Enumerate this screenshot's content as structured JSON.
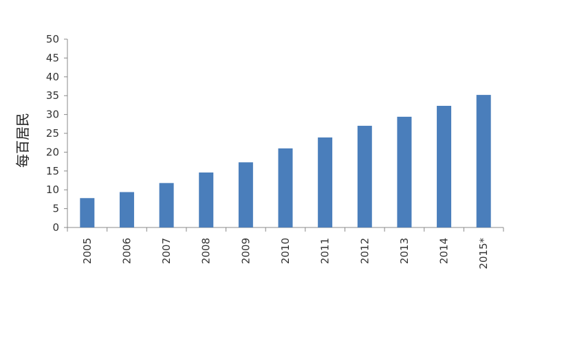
{
  "chart_data": {
    "type": "bar",
    "title": "",
    "xlabel": "",
    "ylabel": "每百居民",
    "categories": [
      "2005",
      "2006",
      "2007",
      "2008",
      "2009",
      "2010",
      "2011",
      "2012",
      "2013",
      "2014",
      "2015*"
    ],
    "values": [
      7.8,
      9.4,
      11.8,
      14.6,
      17.3,
      21.0,
      23.9,
      27.0,
      29.4,
      32.3,
      35.2
    ],
    "ylim": [
      0,
      50
    ],
    "yticks": [
      "0",
      "5",
      "10",
      "15",
      "20",
      "25",
      "30",
      "35",
      "40",
      "45",
      "50"
    ],
    "grid": false,
    "legend": "none",
    "bar_color": "#4a7ebb",
    "axis_color": "#888888"
  }
}
